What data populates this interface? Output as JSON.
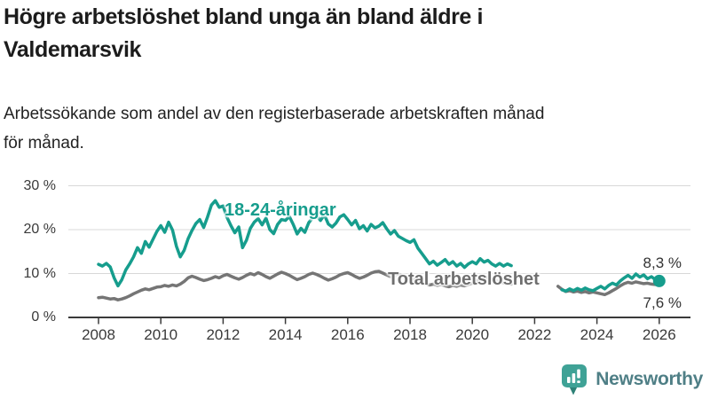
{
  "header": {
    "title": "Högre arbetslöshet bland unga än bland äldre i Valdemarsvik",
    "title_lines": [
      "Högre arbetslöshet bland unga än bland äldre i",
      "Valdemarsvik"
    ],
    "subtitle": "Arbetssökande som andel av den registerbaserade arbetskraften månad för månad.",
    "subtitle_lines": [
      "Arbetssökande som andel av den registerbaserade arbetskraften månad",
      "för månad."
    ]
  },
  "chart_data": {
    "type": "line",
    "title": "Högre arbetslöshet bland unga än bland äldre i Valdemarsvik",
    "xlabel": "",
    "ylabel": "",
    "ylim": [
      0,
      32
    ],
    "xlim": [
      2007.05,
      2027.1
    ],
    "grid": "horizontal-only",
    "legend_position": "inline-labels",
    "yticks": [
      {
        "value": 0,
        "label": "0 %"
      },
      {
        "value": 10,
        "label": "10 %"
      },
      {
        "value": 20,
        "label": "20 %"
      },
      {
        "value": 30,
        "label": "30 %"
      }
    ],
    "xticks": [
      {
        "value": 2008,
        "label": "2008"
      },
      {
        "value": 2010,
        "label": "2010"
      },
      {
        "value": 2012,
        "label": "2012"
      },
      {
        "value": 2014,
        "label": "2014"
      },
      {
        "value": 2016,
        "label": "2016"
      },
      {
        "value": 2018,
        "label": "2018"
      },
      {
        "value": 2020,
        "label": "2020"
      },
      {
        "value": 2022,
        "label": "2022"
      },
      {
        "value": 2024,
        "label": "2024"
      },
      {
        "value": 2026,
        "label": "2026"
      }
    ],
    "series": [
      {
        "name": "18-24-åringar",
        "color": "#169d8d",
        "end_label": "8,3 %",
        "end_value": 8.3,
        "end_dot": true,
        "segments": [
          {
            "start": 2008.0,
            "step": 0.125,
            "values": [
              12.1,
              11.7,
              12.3,
              11.5,
              9.0,
              7.2,
              8.6,
              10.8,
              12.2,
              13.8,
              15.9,
              14.6,
              17.3,
              16.0,
              17.8,
              19.6,
              20.9,
              19.4,
              21.7,
              19.9,
              16.2,
              13.8,
              15.3,
              17.9,
              19.8,
              21.4,
              22.3,
              20.5,
              22.9,
              25.6,
              26.6,
              25.1,
              25.4,
              22.8,
              20.9,
              19.3,
              20.6,
              15.9,
              17.6,
              20.3,
              21.7,
              22.5,
              21.1,
              22.6,
              20.0,
              19.1,
              21.2,
              22.3,
              22.1,
              23.0,
              21.2,
              19.0,
              20.3,
              19.4,
              21.6,
              22.7,
              23.2,
              22.1,
              23.4,
              21.3,
              20.6,
              21.5,
              22.9,
              23.4,
              22.3,
              21.1,
              22.1,
              20.2,
              20.9,
              19.7,
              21.2,
              20.4,
              20.8,
              21.6,
              20.2,
              19.0,
              19.8,
              18.5,
              18.0,
              17.5,
              17.1,
              17.7,
              15.8,
              14.6,
              13.4,
              12.2,
              12.8,
              11.9,
              12.5,
              13.2,
              12.1,
              12.7,
              11.7,
              12.3,
              11.4,
              12.2,
              12.7,
              12.2,
              13.4,
              12.6,
              13.0,
              12.2,
              11.7,
              12.3,
              11.7,
              12.2,
              11.8
            ]
          },
          {
            "start": 2022.875,
            "step": 0.125,
            "values": [
              6.3,
              6.0,
              6.5,
              6.1,
              6.6,
              6.2,
              6.7,
              6.3,
              6.1,
              6.6,
              7.1,
              6.5,
              7.3,
              7.8,
              7.4,
              8.3,
              9.0,
              9.6,
              8.9,
              9.9,
              9.2,
              9.7,
              8.8,
              9.3,
              8.6,
              8.3
            ]
          }
        ]
      },
      {
        "name": "Total arbetslöshet",
        "color": "#757575",
        "end_label": "7,6 %",
        "end_value": 7.6,
        "end_dot": false,
        "segments": [
          {
            "start": 2008.0,
            "step": 0.125,
            "values": [
              4.5,
              4.6,
              4.4,
              4.2,
              4.3,
              4.0,
              4.2,
              4.5,
              4.9,
              5.4,
              5.8,
              6.2,
              6.5,
              6.3,
              6.6,
              6.9,
              7.0,
              7.3,
              7.1,
              7.4,
              7.2,
              7.6,
              8.2,
              9.0,
              9.4,
              9.1,
              8.7,
              8.4,
              8.6,
              8.9,
              9.3,
              9.0,
              9.5,
              9.8,
              9.4,
              9.0,
              8.7,
              9.1,
              9.6,
              10.0,
              9.7,
              10.2,
              9.8,
              9.3,
              8.9,
              9.4,
              9.9,
              10.3,
              10.0,
              9.6,
              9.1,
              8.6,
              8.9,
              9.3,
              9.8,
              10.1,
              9.8,
              9.4,
              8.9,
              8.5,
              8.8,
              9.2,
              9.7,
              10.0,
              10.2,
              9.8,
              9.3,
              8.9,
              9.2,
              9.6,
              10.1,
              10.4,
              10.5,
              10.1,
              9.7,
              9.3,
              9.6,
              9.9,
              9.5,
              9.2,
              9.0,
              8.7,
              8.4,
              8.0,
              7.7,
              7.4,
              7.6,
              7.3,
              7.5,
              7.2,
              7.0,
              7.3,
              7.1,
              7.4,
              7.2,
              7.5,
              7.8,
              8.3,
              8.8,
              9.2,
              9.0,
              8.7,
              8.4,
              8.1,
              7.9,
              7.7,
              7.6
            ]
          },
          {
            "start": 2022.75,
            "step": 0.125,
            "values": [
              7.1,
              6.4,
              5.9,
              6.1,
              5.8,
              6.0,
              5.7,
              5.9,
              5.6,
              5.8,
              5.6,
              5.4,
              5.2,
              5.6,
              6.1,
              6.6,
              7.2,
              7.7,
              8.0,
              7.8,
              8.1,
              7.9,
              7.7,
              7.8,
              7.6,
              7.5,
              7.6
            ]
          }
        ]
      }
    ]
  },
  "footer": {
    "brand": "Newsworthy"
  },
  "colors": {
    "accent_teal": "#169d8d",
    "line_gray": "#757575",
    "grid_line": "#d8d8d8",
    "axis_line": "#3a3a3a",
    "title_text": "#1c1c1c",
    "brand_icon": "#3fa296",
    "brand_icon_dark": "#2e8177",
    "brand_text": "#4f7f86"
  }
}
